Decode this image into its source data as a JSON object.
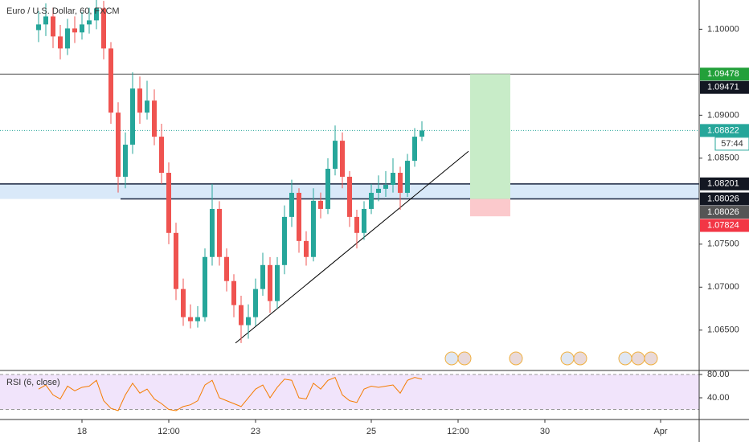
{
  "chart_data": {
    "type": "candlestick",
    "title": "Euro / U.S. Dollar, 60, FXCM",
    "categories": [
      null,
      null,
      null,
      null,
      null,
      null,
      "18",
      null,
      null,
      null,
      null,
      null,
      null,
      null,
      null,
      null,
      null,
      null,
      "12:00",
      null,
      null,
      null,
      null,
      null,
      null,
      null,
      null,
      null,
      null,
      null,
      "23",
      null,
      null,
      null,
      null,
      null,
      null,
      null,
      null,
      null,
      null,
      null,
      null,
      null,
      null,
      null,
      "25",
      null,
      null,
      null,
      null,
      null,
      null,
      null,
      null,
      null,
      null,
      null,
      "12:00",
      null,
      null,
      null,
      null,
      null,
      null,
      null,
      null,
      null,
      null,
      null,
      "30",
      null,
      null,
      null,
      null,
      null,
      null,
      null,
      null,
      null,
      null,
      null,
      null,
      null,
      null,
      null,
      "Apr",
      null,
      null,
      null,
      null,
      null
    ],
    "open": [
      1.0999,
      1.10056,
      1.10149,
      1.09916,
      1.09776,
      1.10009,
      1.09963,
      1.10056,
      1.10103,
      1.10243,
      1.09776,
      1.0903,
      1.08284,
      1.08657,
      1.0931,
      1.0903,
      1.0917,
      1.0875,
      1.0833,
      1.07631,
      1.06978,
      1.06651,
      1.06604,
      1.06651,
      1.07351,
      1.0791,
      1.07351,
      1.07071,
      1.06791,
      1.06558,
      1.06651,
      1.06978,
      1.07257,
      1.06838,
      1.07257,
      1.07817,
      1.08097,
      1.07537,
      1.07351,
      1.08004,
      1.0791,
      1.08377,
      1.08703,
      1.08284,
      1.07817,
      1.07631,
      1.0791,
      1.08097,
      1.08144,
      1.0819,
      1.0833,
      1.08097,
      1.0847,
      1.0875,
      null,
      null,
      null,
      null,
      null,
      null,
      null,
      null,
      null,
      null,
      null,
      null,
      null,
      null,
      null,
      null,
      null,
      null,
      null,
      null,
      null,
      null,
      null,
      null,
      null,
      null,
      null,
      null,
      null,
      null,
      null,
      null,
      null,
      null,
      null,
      null,
      null,
      null
    ],
    "high": [
      1.1021,
      1.103,
      1.1025,
      1.1005,
      1.1012,
      1.1015,
      1.102,
      1.1025,
      1.104,
      1.1033,
      1.0985,
      1.0915,
      1.088,
      1.095,
      1.0945,
      1.094,
      1.093,
      1.089,
      1.0845,
      1.0775,
      1.071,
      1.068,
      1.0678,
      1.0745,
      1.082,
      1.08,
      1.0745,
      1.0715,
      1.069,
      1.068,
      1.071,
      1.074,
      1.0735,
      1.0735,
      1.0795,
      1.0825,
      1.0815,
      1.0765,
      1.0815,
      1.081,
      1.085,
      1.0888,
      1.088,
      1.0835,
      1.079,
      1.08,
      1.082,
      1.083,
      1.0835,
      1.085,
      1.084,
      1.0855,
      1.0885,
      1.0893,
      null,
      null,
      null,
      null,
      null,
      null,
      null,
      null,
      null,
      null,
      null,
      null,
      null,
      null,
      null,
      null,
      null,
      null,
      null,
      null,
      null,
      null,
      null,
      null,
      null,
      null,
      null,
      null,
      null,
      null,
      null,
      null,
      null,
      null,
      null,
      null,
      null,
      null
    ],
    "low": [
      1.0985,
      1.0992,
      1.0978,
      1.0965,
      1.097,
      1.0984,
      1.0988,
      1.0995,
      1.1,
      1.0965,
      1.089,
      1.081,
      1.0815,
      1.0855,
      1.089,
      1.0895,
      1.0865,
      1.082,
      1.075,
      1.0685,
      1.0655,
      1.0652,
      1.0653,
      1.066,
      1.0725,
      1.0725,
      1.0695,
      1.0665,
      1.0635,
      1.064,
      1.0655,
      1.069,
      1.067,
      1.0675,
      1.0715,
      1.077,
      1.074,
      1.0725,
      1.073,
      1.078,
      1.0785,
      1.083,
      1.0815,
      1.077,
      1.0745,
      1.0755,
      1.0785,
      1.08,
      1.0805,
      1.081,
      1.079,
      1.0805,
      1.084,
      1.087,
      null,
      null,
      null,
      null,
      null,
      null,
      null,
      null,
      null,
      null,
      null,
      null,
      null,
      null,
      null,
      null,
      null,
      null,
      null,
      null,
      null,
      null,
      null,
      null,
      null,
      null,
      null,
      null,
      null,
      null,
      null,
      null,
      null,
      null,
      null,
      null,
      null,
      null
    ],
    "close": [
      1.10056,
      1.10149,
      1.09916,
      1.09776,
      1.10009,
      1.09963,
      1.10056,
      1.10103,
      1.10243,
      1.09776,
      1.0903,
      1.08284,
      1.08657,
      1.0931,
      1.0903,
      1.0917,
      1.0875,
      1.0833,
      1.07631,
      1.06978,
      1.06651,
      1.06604,
      1.06651,
      1.07351,
      1.0791,
      1.07351,
      1.07071,
      1.06791,
      1.06558,
      1.06651,
      1.06978,
      1.07257,
      1.06838,
      1.07257,
      1.07817,
      1.08097,
      1.07537,
      1.07351,
      1.08004,
      1.0791,
      1.08377,
      1.08703,
      1.08284,
      1.07817,
      1.07631,
      1.0791,
      1.08097,
      1.08144,
      1.0819,
      1.0833,
      1.08097,
      1.0847,
      1.0875,
      1.08822,
      null,
      null,
      null,
      null,
      null,
      null,
      null,
      null,
      null,
      null,
      null,
      null,
      null,
      null,
      null,
      null,
      null,
      null,
      null,
      null,
      null,
      null,
      null,
      null,
      null,
      null,
      null,
      null,
      null,
      null,
      null,
      null,
      null,
      null,
      null,
      null,
      null,
      null
    ],
    "up_color": "#26a69a",
    "down_color": "#ef5350",
    "ylim": [
      1.0604,
      1.1034
    ],
    "yticks": [
      {
        "value": 1.1,
        "label": "1.10000"
      },
      {
        "value": 1.09,
        "label": "1.09000"
      },
      {
        "value": 1.085,
        "label": "1.08500"
      },
      {
        "value": 1.075,
        "label": "1.07500"
      },
      {
        "value": 1.07,
        "label": "1.07000"
      },
      {
        "value": 1.065,
        "label": "1.06500"
      }
    ],
    "level_line": {
      "value": 1.09478,
      "color": "#555555"
    },
    "current_line": {
      "value": 1.08822,
      "color": "#26a69a"
    },
    "zone": {
      "low": 1.08026,
      "high": 1.08201,
      "color": "#cfe3f7"
    },
    "trendline": [
      1.0635,
      1.0858
    ],
    "position": {
      "entry": 1.08026,
      "target": 1.09478,
      "stop": 1.07824
    },
    "price_labels": [
      {
        "value": 1.09478,
        "label": "1.09478",
        "color": "#22a03a"
      },
      {
        "value": 1.09471,
        "label": "1.09471",
        "color": "#131722"
      },
      {
        "value": 1.08822,
        "label": "1.08822",
        "color": "#26a69a"
      },
      {
        "value": 1.08201,
        "label": "1.08201",
        "color": "#131722"
      },
      {
        "value": 1.08026,
        "label": "1.08026",
        "color": "#131722"
      },
      {
        "value": 1.08026,
        "label": "1.08026",
        "color": "#555555"
      },
      {
        "value": 1.07824,
        "label": "1.07824",
        "color": "#f23645"
      }
    ],
    "countdown": "57:44",
    "rsi": {
      "title": "RSI (6, close)",
      "color": "#f57c00",
      "band_color": "#f1e4fb",
      "bands": [
        20,
        80
      ],
      "ylim": [
        2.8,
        85.5
      ],
      "yticks": [
        {
          "value": 80,
          "label": "80.00"
        },
        {
          "value": 40,
          "label": "40.00"
        }
      ],
      "values": [
        55,
        62,
        45,
        38,
        60,
        52,
        58,
        60,
        70,
        35,
        22,
        18,
        45,
        65,
        48,
        55,
        38,
        30,
        20,
        18,
        25,
        28,
        35,
        62,
        70,
        40,
        35,
        30,
        25,
        40,
        55,
        62,
        40,
        58,
        72,
        70,
        40,
        38,
        65,
        55,
        70,
        75,
        45,
        35,
        32,
        55,
        60,
        58,
        60,
        62,
        48,
        70,
        75,
        72,
        null,
        null,
        null,
        null,
        null,
        null,
        null,
        null,
        null,
        null,
        null,
        null,
        null,
        null,
        null,
        null,
        null,
        null,
        null,
        null,
        null,
        null,
        null,
        null,
        null,
        null,
        null,
        null,
        null,
        null,
        null,
        null,
        null,
        null,
        null,
        null,
        null,
        null
      ]
    }
  }
}
